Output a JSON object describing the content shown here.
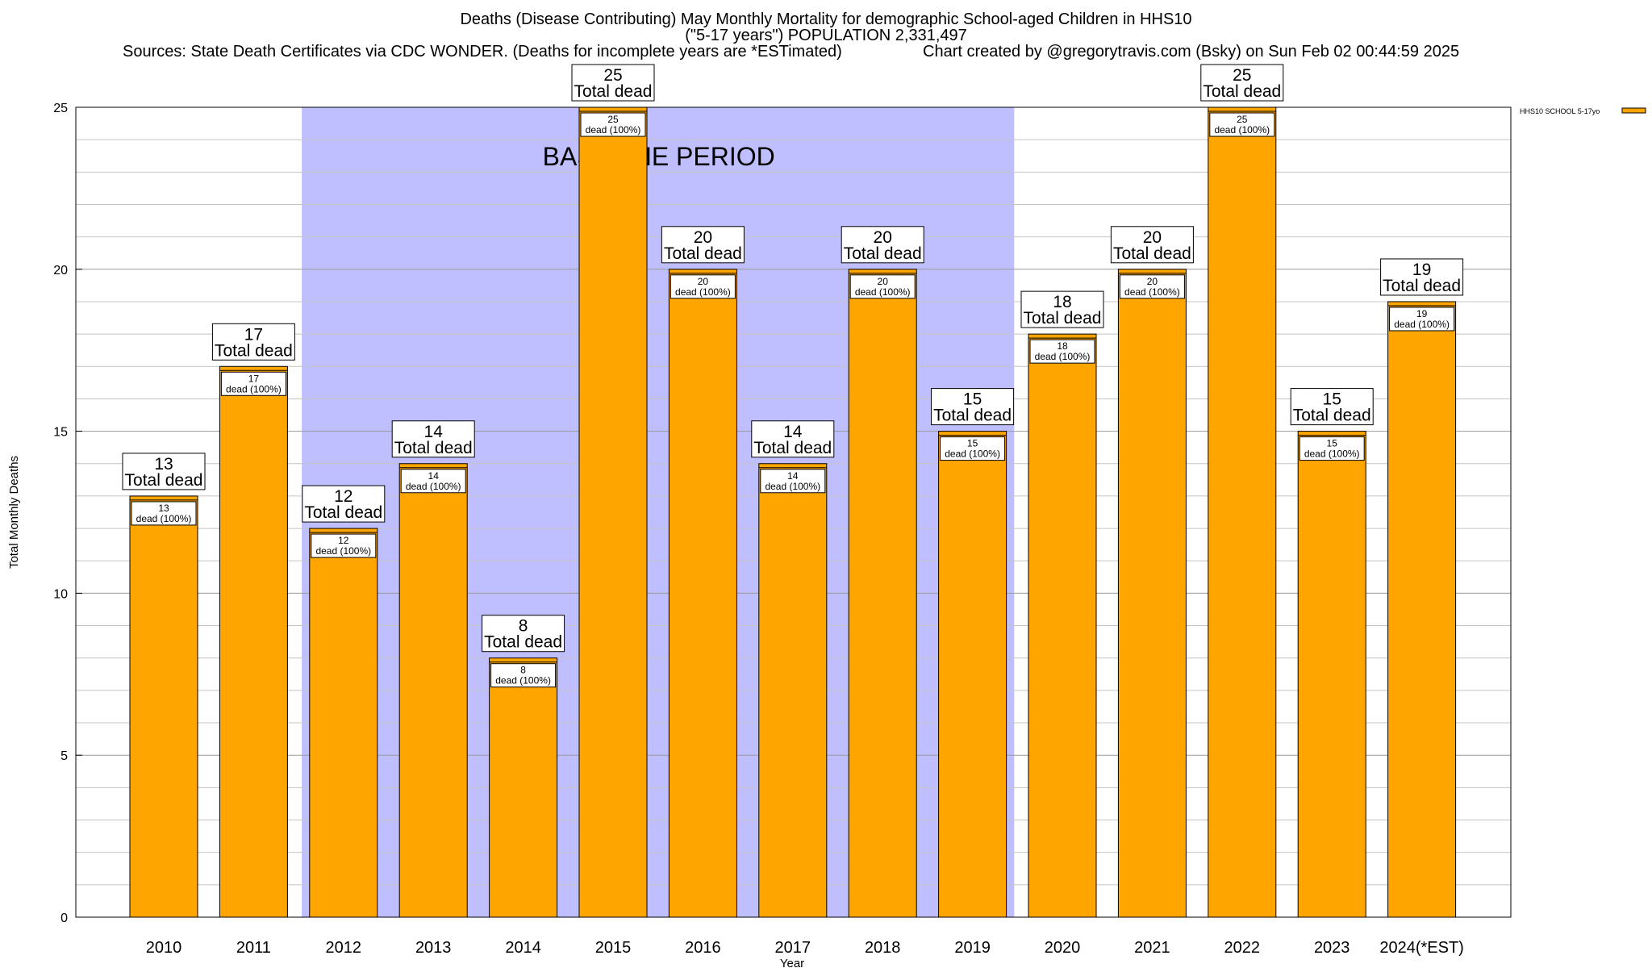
{
  "header": {
    "title_line1": "Deaths (Disease Contributing) May Monthly Mortality for demographic School-aged Children in HHS10",
    "title_line2": "(\"5-17 years\") POPULATION 2,331,497",
    "sources": "Sources: State Death Certificates via CDC WONDER. (Deaths for incomplete years are *ESTimated)",
    "credit": "Chart created by @gregorytravis.com (Bsky) on Sun Feb 02 00:44:59 2025"
  },
  "chart_data": {
    "type": "bar",
    "title": "Deaths (Disease Contributing) May Monthly Mortality for demographic School-aged Children in HHS10",
    "xlabel": "Year",
    "ylabel": "Total Monthly Deaths",
    "ylim": [
      0,
      25
    ],
    "yticks": [
      0,
      5,
      10,
      15,
      20,
      25
    ],
    "grid": true,
    "legend_position": "top-right",
    "bar_color": "#FFA500",
    "baseline_color": "#BFBFFF",
    "baseline_label": "BASELINE PERIOD",
    "baseline_range": [
      "2012",
      "2019"
    ],
    "total_label": "Total dead",
    "segment_label": "dead (100%)",
    "categories": [
      "2010",
      "2011",
      "2012",
      "2013",
      "2014",
      "2015",
      "2016",
      "2017",
      "2018",
      "2019",
      "2020",
      "2021",
      "2022",
      "2023",
      "2024(*EST)"
    ],
    "series": [
      {
        "name": "HHS10 SCHOOL 5-17yo",
        "values": [
          13,
          17,
          12,
          14,
          8,
          25,
          20,
          14,
          20,
          15,
          18,
          20,
          25,
          15,
          19
        ]
      }
    ]
  }
}
